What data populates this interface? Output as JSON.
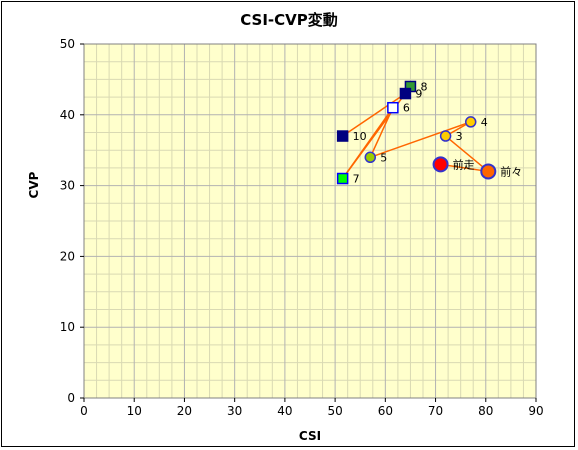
{
  "chart_data": {
    "type": "scatter",
    "title": "CSI-CVP変動",
    "xlabel": "CSI",
    "ylabel": "CVP",
    "xlim": [
      0,
      90
    ],
    "ylim": [
      0,
      50
    ],
    "xticks": [
      0,
      10,
      20,
      30,
      40,
      50,
      60,
      70,
      80,
      90
    ],
    "yticks": [
      0,
      10,
      20,
      30,
      40,
      50
    ],
    "grid": true,
    "minor_grid": true,
    "plot_background": "#ffffcc",
    "major_grid_color": "#b2b2b2",
    "minor_grid_color": "#d9d9b3",
    "line_color": "#ff6600",
    "points": [
      {
        "label": "前走",
        "x": 71,
        "y": 33,
        "shape": "circle-large",
        "fill": "#ff0000",
        "stroke": "#3333cc"
      },
      {
        "label": "前々",
        "x": 80.5,
        "y": 32,
        "shape": "circle-large",
        "fill": "#ff6600",
        "stroke": "#3333cc"
      },
      {
        "label": "3",
        "x": 72,
        "y": 37,
        "shape": "circle",
        "fill": "#ffcc00",
        "stroke": "#3333cc"
      },
      {
        "label": "4",
        "x": 77,
        "y": 39,
        "shape": "circle",
        "fill": "#ffcc00",
        "stroke": "#3333cc"
      },
      {
        "label": "5",
        "x": 57,
        "y": 34,
        "shape": "circle",
        "fill": "#99cc00",
        "stroke": "#3333cc"
      },
      {
        "label": "6",
        "x": 61.5,
        "y": 41,
        "shape": "square",
        "fill": "#ffffff",
        "stroke": "#0000ff"
      },
      {
        "label": "7",
        "x": 51.5,
        "y": 31,
        "shape": "square",
        "fill": "#00ff00",
        "stroke": "#0000ff"
      },
      {
        "label": "8",
        "x": 65,
        "y": 44,
        "shape": "square",
        "fill": "#339933",
        "stroke": "#000080"
      },
      {
        "label": "9",
        "x": 64,
        "y": 43,
        "shape": "square",
        "fill": "#000080",
        "stroke": "#000080"
      },
      {
        "label": "10",
        "x": 51.5,
        "y": 37,
        "shape": "square",
        "fill": "#000080",
        "stroke": "#000080"
      }
    ],
    "connections": [
      [
        "前走",
        "前々"
      ],
      [
        "前々",
        "3"
      ],
      [
        "3",
        "4"
      ],
      [
        "4",
        "5"
      ],
      [
        "5",
        "6"
      ],
      [
        "6",
        "7"
      ],
      [
        "7",
        "8"
      ],
      [
        "8",
        "9"
      ],
      [
        "9",
        "10"
      ]
    ]
  }
}
